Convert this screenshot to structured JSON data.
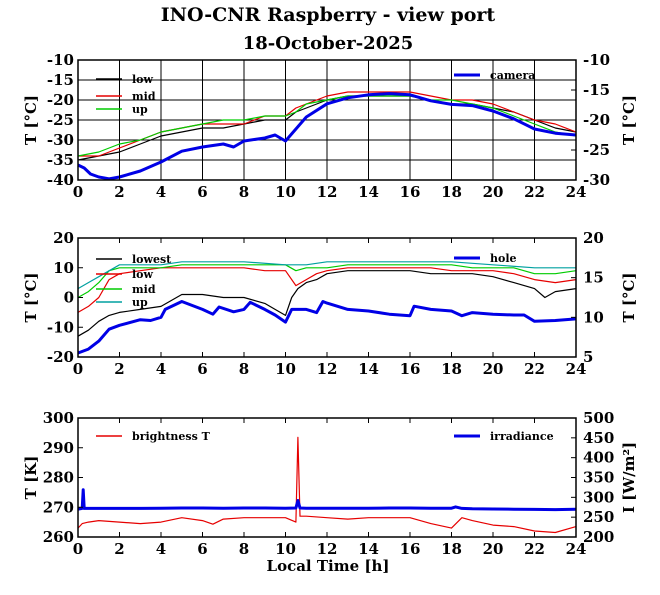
{
  "title": "INO-CNR Raspberry - view port",
  "subtitle": "18-October-2025",
  "colors": {
    "black": "#000000",
    "red": "#e60000",
    "green": "#00cc00",
    "blue": "#0000e6",
    "cyan": "#00a0a0"
  },
  "chart_data": [
    {
      "type": "line",
      "xlim": [
        0,
        24
      ],
      "xticks": [
        "0",
        "2",
        "4",
        "6",
        "8",
        "10",
        "12",
        "14",
        "16",
        "18",
        "20",
        "22",
        "24"
      ],
      "ylabel": "T [°C]",
      "ylim": [
        -40,
        -10
      ],
      "yticks": [
        "-40",
        "-35",
        "-30",
        "-25",
        "-20",
        "-15",
        "-10"
      ],
      "y2label": "T [°C]",
      "y2lim": [
        -30,
        -10
      ],
      "y2ticks": [
        "-30",
        "-25",
        "-20",
        "-15",
        "-10"
      ],
      "grid": true,
      "series": [
        {
          "name": "low",
          "color": "#000000",
          "axis": "left",
          "x": [
            0,
            1,
            2,
            3,
            4,
            5,
            6,
            7,
            8,
            9,
            10,
            10.5,
            11,
            12,
            13,
            14,
            15,
            16,
            17,
            18,
            19,
            20,
            21,
            22,
            23,
            24
          ],
          "y": [
            -35,
            -34,
            -33,
            -31,
            -29,
            -28,
            -27,
            -27,
            -26,
            -25,
            -25,
            -23,
            -22,
            -20,
            -19,
            -19,
            -19,
            -19,
            -20,
            -21,
            -21,
            -22,
            -23,
            -25,
            -27,
            -28
          ]
        },
        {
          "name": "mid",
          "color": "#e60000",
          "axis": "left",
          "x": [
            0,
            1,
            2,
            3,
            4,
            5,
            6,
            7,
            8,
            9,
            10,
            10.5,
            11,
            12,
            13,
            14,
            15,
            16,
            17,
            18,
            19,
            20,
            21,
            22,
            23,
            24
          ],
          "y": [
            -34,
            -34,
            -32,
            -30,
            -28,
            -27,
            -26,
            -26,
            -26,
            -24,
            -24,
            -22,
            -21,
            -19,
            -18,
            -18,
            -18,
            -18,
            -19,
            -20,
            -20,
            -21,
            -23,
            -25,
            -26,
            -28
          ]
        },
        {
          "name": "up",
          "color": "#00cc00",
          "axis": "left",
          "x": [
            0,
            1,
            2,
            3,
            4,
            5,
            6,
            7,
            8,
            9,
            10,
            10.5,
            11,
            12,
            13,
            14,
            15,
            16,
            17,
            18,
            19,
            20,
            21,
            22,
            23,
            24
          ],
          "y": [
            -34,
            -33,
            -31,
            -30,
            -28,
            -27,
            -26,
            -25,
            -25,
            -24,
            -24,
            -23,
            -21,
            -20,
            -19,
            -19,
            -19,
            -19,
            -20,
            -20,
            -21,
            -22,
            -24,
            -26,
            -28,
            -29
          ]
        },
        {
          "name": "camera",
          "color": "#0000e6",
          "axis": "right",
          "x": [
            0,
            0.3,
            0.6,
            1,
            1.5,
            2,
            3,
            4,
            5,
            6,
            7,
            7.5,
            8,
            9,
            9.5,
            10,
            10.5,
            11,
            12,
            13,
            14,
            15,
            16,
            17,
            18,
            19,
            20,
            21,
            22,
            23,
            24
          ],
          "y": [
            -27.5,
            -28,
            -29,
            -29.5,
            -29.8,
            -29.5,
            -28.5,
            -27,
            -25.2,
            -24.5,
            -24,
            -24.5,
            -23.5,
            -23,
            -22.5,
            -23.5,
            -21.5,
            -19.5,
            -17.3,
            -16.3,
            -15.8,
            -15.6,
            -15.8,
            -16.8,
            -17.4,
            -17.6,
            -18.5,
            -19.8,
            -21.5,
            -22.2,
            -22.5
          ]
        }
      ]
    },
    {
      "type": "line",
      "xlim": [
        0,
        24
      ],
      "xticks": [
        "0",
        "2",
        "4",
        "6",
        "8",
        "10",
        "12",
        "14",
        "16",
        "18",
        "20",
        "22",
        "24"
      ],
      "ylabel": "T [°C]",
      "ylim": [
        -20,
        20
      ],
      "yticks": [
        "-20",
        "-10",
        "0",
        "10",
        "20"
      ],
      "y2label": "T [°C]",
      "y2lim": [
        5,
        20
      ],
      "y2ticks": [
        "5",
        "10",
        "15",
        "20"
      ],
      "grid": false,
      "series": [
        {
          "name": "lowest",
          "color": "#000000",
          "axis": "left",
          "x": [
            0,
            0.5,
            1,
            1.5,
            2,
            3,
            4,
            5,
            6,
            7,
            8,
            9,
            9.5,
            10,
            10.3,
            10.6,
            11,
            11.5,
            12,
            13,
            14,
            15,
            16,
            17,
            18,
            19,
            20,
            21,
            22,
            22.5,
            23,
            24
          ],
          "y": [
            -13,
            -11,
            -8,
            -6,
            -5,
            -4,
            -3,
            1,
            1,
            0,
            0,
            -2,
            -4,
            -6,
            0,
            3,
            5,
            6,
            8,
            9,
            9,
            9,
            9,
            8,
            8,
            8,
            7,
            5,
            3,
            0,
            2,
            3
          ]
        },
        {
          "name": "low",
          "color": "#e60000",
          "axis": "left",
          "x": [
            0,
            0.5,
            1,
            1.5,
            2,
            3,
            4,
            5,
            6,
            7,
            8,
            9,
            10,
            10.5,
            11,
            11.5,
            12,
            13,
            14,
            15,
            16,
            17,
            18,
            19,
            20,
            21,
            22,
            23,
            24
          ],
          "y": [
            -5,
            -3,
            0,
            6,
            8,
            9,
            10,
            10,
            10,
            10,
            10,
            9,
            9,
            4,
            6,
            8,
            9,
            10,
            10,
            10,
            10,
            10,
            9,
            9,
            9,
            8,
            6,
            5,
            6
          ]
        },
        {
          "name": "mid",
          "color": "#00cc00",
          "axis": "left",
          "x": [
            0,
            0.5,
            1,
            1.5,
            2,
            3,
            4,
            5,
            6,
            7,
            8,
            9,
            10,
            10.5,
            11,
            12,
            13,
            14,
            15,
            16,
            17,
            18,
            19,
            20,
            21,
            22,
            23,
            24
          ],
          "y": [
            0,
            2,
            5,
            9,
            10,
            10,
            10,
            11,
            11,
            11,
            11,
            11,
            11,
            9,
            10,
            10,
            11,
            11,
            11,
            11,
            11,
            11,
            10,
            10,
            10,
            8,
            8,
            9
          ]
        },
        {
          "name": "up",
          "color": "#00a0a0",
          "axis": "left",
          "x": [
            0,
            0.5,
            1,
            2,
            3,
            4,
            5,
            6,
            8,
            10,
            11,
            12,
            14,
            16,
            18,
            20,
            22,
            24
          ],
          "y": [
            3,
            5,
            7,
            11,
            11,
            11,
            12,
            12,
            12,
            11,
            11,
            12,
            12,
            12,
            12,
            11,
            10,
            10
          ]
        },
        {
          "name": "hole",
          "color": "#0000e6",
          "axis": "right",
          "x": [
            0,
            0.5,
            1,
            1.5,
            2,
            3,
            3.5,
            4,
            4.2,
            5,
            6,
            6.5,
            6.8,
            7.5,
            8,
            8.3,
            9,
            9.5,
            10,
            10.3,
            11,
            11.5,
            11.8,
            12,
            13,
            14,
            15,
            16,
            16.2,
            17,
            18,
            18.5,
            19,
            20,
            21,
            21.5,
            22,
            23,
            24
          ],
          "y": [
            5.5,
            6,
            7,
            8.5,
            9,
            9.7,
            9.6,
            10,
            11,
            12,
            11,
            10.4,
            11.3,
            10.7,
            11,
            11.9,
            11,
            10.3,
            9.4,
            11,
            11,
            10.6,
            12,
            11.8,
            11,
            10.8,
            10.4,
            10.2,
            11.4,
            11,
            10.8,
            10.2,
            10.6,
            10.4,
            10.3,
            10.3,
            9.5,
            9.6,
            9.8
          ]
        }
      ]
    },
    {
      "type": "line",
      "xlim": [
        0,
        24
      ],
      "xticks": [
        "0",
        "2",
        "4",
        "6",
        "8",
        "10",
        "12",
        "14",
        "16",
        "18",
        "20",
        "22",
        "24"
      ],
      "xlabel": "Local Time [h]",
      "ylabel": "T [K]",
      "ylim": [
        260,
        300
      ],
      "yticks": [
        "260",
        "270",
        "280",
        "290",
        "300"
      ],
      "y2label": "I [W/m²]",
      "y2lim": [
        200,
        500
      ],
      "y2ticks": [
        "200",
        "250",
        "300",
        "350",
        "400",
        "450",
        "500"
      ],
      "grid": false,
      "series": [
        {
          "name": "brightness T",
          "color": "#e60000",
          "axis": "left",
          "x": [
            0,
            0.2,
            0.5,
            1,
            2,
            3,
            4,
            5,
            6,
            6.5,
            7,
            8,
            9,
            10,
            10.5,
            10.6,
            10.7,
            11,
            12,
            13,
            14,
            15,
            16,
            17,
            18,
            18.5,
            19,
            20,
            21,
            22,
            23,
            24
          ],
          "y": [
            263,
            264.5,
            265,
            265.5,
            265,
            264.5,
            265,
            266.5,
            265.5,
            264.3,
            266,
            266.5,
            266.5,
            266.5,
            265,
            293.5,
            267,
            267,
            266.5,
            266,
            266.5,
            266.5,
            266.5,
            264.5,
            263,
            266.5,
            265.5,
            264,
            263.5,
            262,
            261.5,
            263.5
          ]
        },
        {
          "name": "irradiance",
          "color": "#0000e6",
          "axis": "right",
          "x": [
            0,
            0.2,
            0.25,
            0.3,
            0.5,
            1,
            2,
            3,
            4,
            5,
            6,
            7,
            8,
            9,
            10,
            10.5,
            10.6,
            10.7,
            11,
            12,
            13,
            14,
            15,
            16,
            17,
            18,
            18.2,
            18.5,
            19,
            20,
            21,
            22,
            23,
            24
          ],
          "y": [
            270,
            272,
            319,
            272,
            272,
            272,
            272,
            272,
            272.5,
            273,
            273,
            272.5,
            273,
            273,
            272.5,
            273,
            292,
            273,
            272.5,
            272.5,
            272.5,
            272.5,
            273,
            273,
            272.5,
            272.5,
            276,
            272,
            271,
            270.5,
            270,
            269.5,
            269,
            270
          ]
        }
      ]
    }
  ]
}
